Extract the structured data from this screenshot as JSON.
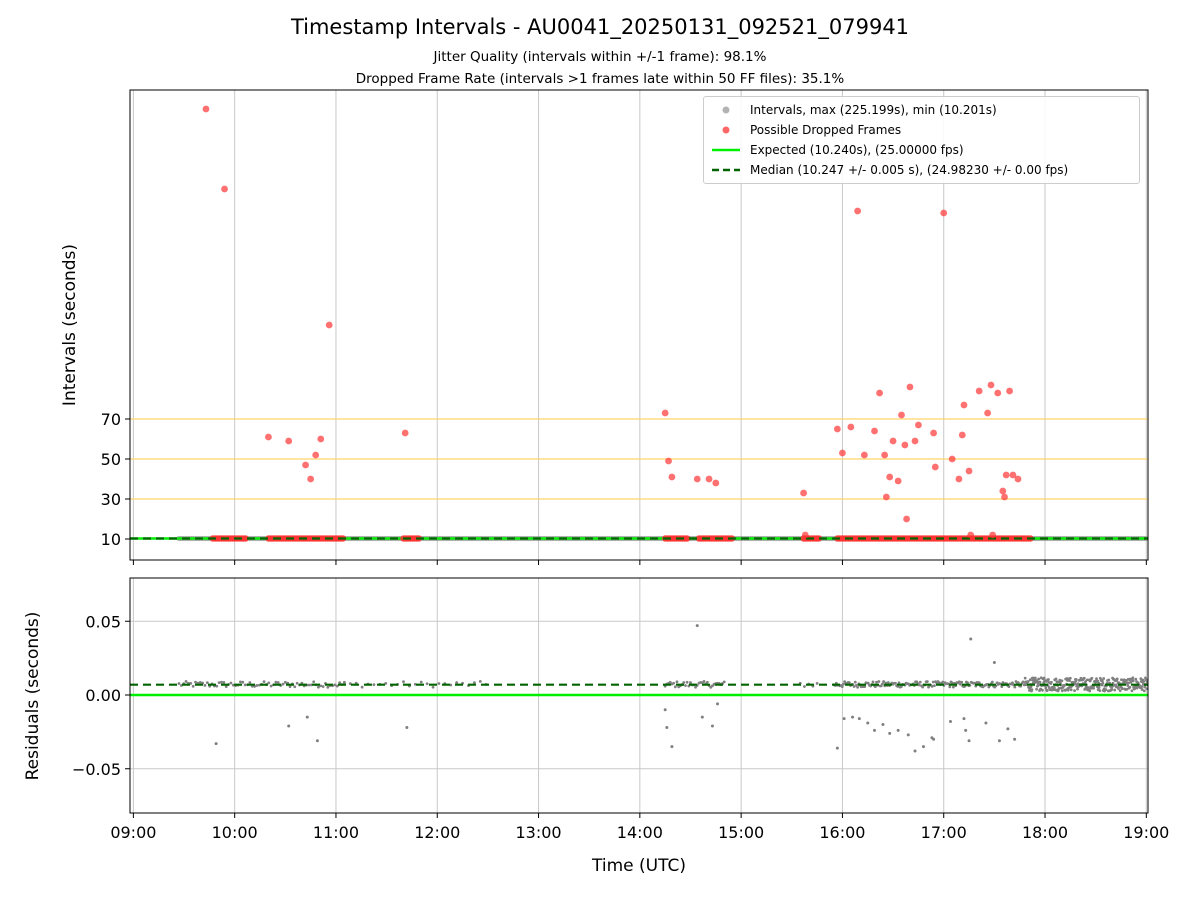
{
  "title": "Timestamp Intervals - AU0041_20250131_092521_079941",
  "subtitle_1": "Jitter Quality (intervals within +/-1 frame): 98.1%",
  "subtitle_2": "Dropped Frame Rate (intervals >1 frames late within 50 FF files): 35.1%",
  "colors": {
    "intervals": "#808080",
    "dropped": "#ff3333",
    "expected": "#00ee00",
    "median": "#006400",
    "threshold": "#ffd36b",
    "grid": "#c8c8c8"
  },
  "legend": {
    "intervals": "Intervals, max (225.199s), min (10.201s)",
    "dropped": "Possible Dropped Frames",
    "expected": "Expected (10.240s), (25.00000 fps)",
    "median": "Median (10.247 +/- 0.005 s), (24.98230 +/- 0.00 fps)"
  },
  "chart_data": [
    {
      "type": "scatter",
      "panel": "intervals",
      "ylabel": "Intervals (seconds)",
      "y_ticks": [
        "10",
        "30",
        "50",
        "70"
      ],
      "x_range": [
        "09:00",
        "19:00"
      ],
      "grid": "vertical",
      "threshold_lines": [
        30,
        50,
        70
      ],
      "expected": 10.24,
      "median": 10.247,
      "interval_points_span": [
        "09:27",
        "19:00"
      ],
      "dropped_points": [
        [
          "09:43",
          225
        ],
        [
          "09:54",
          185
        ],
        [
          "10:20",
          61
        ],
        [
          "10:32",
          59
        ],
        [
          "10:42",
          47
        ],
        [
          "10:45",
          40
        ],
        [
          "10:48",
          52
        ],
        [
          "10:51",
          60
        ],
        [
          "10:56",
          117
        ],
        [
          "11:41",
          63
        ],
        [
          "14:15",
          73
        ],
        [
          "14:17",
          49
        ],
        [
          "14:19",
          41
        ],
        [
          "14:34",
          40
        ],
        [
          "14:41",
          40
        ],
        [
          "14:45",
          38
        ],
        [
          "15:37",
          33
        ],
        [
          "15:38",
          12
        ],
        [
          "15:57",
          65
        ],
        [
          "16:00",
          53
        ],
        [
          "16:05",
          66
        ],
        [
          "16:09",
          174
        ],
        [
          "16:13",
          52
        ],
        [
          "16:19",
          64
        ],
        [
          "16:22",
          83
        ],
        [
          "16:25",
          52
        ],
        [
          "16:26",
          31
        ],
        [
          "16:28",
          41
        ],
        [
          "16:30",
          59
        ],
        [
          "16:33",
          39
        ],
        [
          "16:35",
          72
        ],
        [
          "16:37",
          57
        ],
        [
          "16:38",
          20
        ],
        [
          "16:40",
          86
        ],
        [
          "16:43",
          59
        ],
        [
          "16:45",
          67
        ],
        [
          "16:54",
          63
        ],
        [
          "16:55",
          46
        ],
        [
          "17:00",
          173
        ],
        [
          "17:05",
          50
        ],
        [
          "17:09",
          40
        ],
        [
          "17:11",
          62
        ],
        [
          "17:12",
          77
        ],
        [
          "17:15",
          44
        ],
        [
          "17:16",
          12
        ],
        [
          "17:21",
          84
        ],
        [
          "17:26",
          73
        ],
        [
          "17:28",
          87
        ],
        [
          "17:29",
          12
        ],
        [
          "17:32",
          83
        ],
        [
          "17:35",
          34
        ],
        [
          "17:36",
          31
        ],
        [
          "17:37",
          42
        ],
        [
          "17:39",
          84
        ],
        [
          "17:41",
          42
        ],
        [
          "17:44",
          40
        ]
      ],
      "dropped_clusters_at_10s": [
        [
          "09:47",
          "10:07"
        ],
        [
          "10:20",
          "11:05"
        ],
        [
          "11:40",
          "11:50"
        ],
        [
          "14:15",
          "14:28"
        ],
        [
          "14:35",
          "14:55"
        ],
        [
          "15:37",
          "15:47"
        ],
        [
          "15:57",
          "17:52"
        ]
      ]
    },
    {
      "type": "scatter",
      "panel": "residuals",
      "xlabel": "Time (UTC)",
      "ylabel": "Residuals (seconds)",
      "ylim": [
        -0.08,
        0.08
      ],
      "y_ticks": [
        "0.05",
        "0.00",
        "−0.05"
      ],
      "x_ticks": [
        "09:00",
        "10:00",
        "11:00",
        "12:00",
        "13:00",
        "14:00",
        "15:00",
        "16:00",
        "17:00",
        "18:00",
        "19:00"
      ],
      "grid": "both",
      "expected": 0.0,
      "median": 0.007,
      "outliers": [
        [
          "09:49",
          -0.033
        ],
        [
          "10:32",
          -0.021
        ],
        [
          "10:43",
          -0.015
        ],
        [
          "10:49",
          -0.031
        ],
        [
          "11:42",
          -0.022
        ],
        [
          "14:15",
          -0.01
        ],
        [
          "14:16",
          -0.022
        ],
        [
          "14:19",
          -0.035
        ],
        [
          "14:34",
          0.047
        ],
        [
          "14:37",
          -0.015
        ],
        [
          "14:43",
          -0.021
        ],
        [
          "14:46",
          -0.006
        ],
        [
          "15:57",
          -0.036
        ],
        [
          "16:01",
          -0.016
        ],
        [
          "16:06",
          -0.015
        ],
        [
          "16:10",
          -0.016
        ],
        [
          "16:15",
          -0.019
        ],
        [
          "16:19",
          -0.024
        ],
        [
          "16:24",
          -0.02
        ],
        [
          "16:28",
          -0.026
        ],
        [
          "16:33",
          -0.024
        ],
        [
          "16:39",
          -0.027
        ],
        [
          "16:43",
          -0.038
        ],
        [
          "16:48",
          -0.035
        ],
        [
          "16:53",
          -0.029
        ],
        [
          "16:54",
          -0.03
        ],
        [
          "17:04",
          -0.018
        ],
        [
          "17:12",
          -0.016
        ],
        [
          "17:13",
          -0.024
        ],
        [
          "17:15",
          -0.031
        ],
        [
          "17:16",
          0.038
        ],
        [
          "17:25",
          -0.019
        ],
        [
          "17:30",
          0.022
        ],
        [
          "17:33",
          -0.031
        ],
        [
          "17:38",
          -0.023
        ],
        [
          "17:42",
          -0.03
        ]
      ]
    }
  ]
}
